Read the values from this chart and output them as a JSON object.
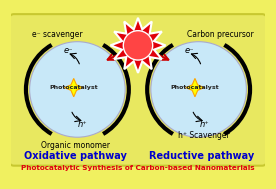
{
  "bg_color": "#f0f060",
  "bg_rect_color": "#e8e860",
  "sun_color": "#e0000a",
  "sun_inner_color": "#ff2020",
  "circle_color": "#c8e8f8",
  "photocatalyst_color": "#f0f000",
  "title_color": "#e00010",
  "label_color": "#0000cc",
  "text_color": "#000000",
  "arrow_color": "#000000",
  "title_text": "Photocatalytic Synthesis of Carbon-based Nanomaterials",
  "left_label": "Oxidative pathway",
  "right_label": "Reductive pathway",
  "left_top_text": "e⁻ scavenger",
  "right_top_text": "Carbon precursor",
  "left_bottom_text": "Organic monomer",
  "right_bottom_text": "h⁺ Scavenger",
  "photocatalyst_text": "Photocatalyst",
  "e_minus": "e⁻",
  "h_plus": "h⁺"
}
